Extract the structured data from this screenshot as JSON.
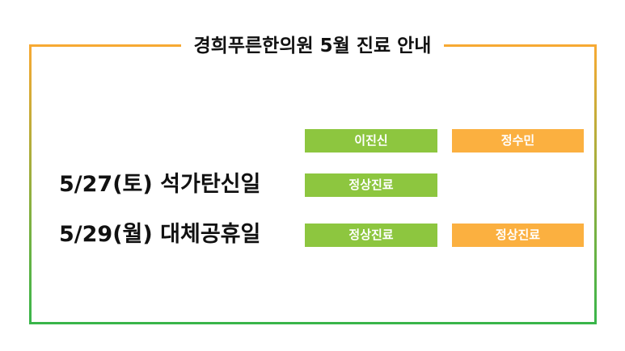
{
  "title": "경희푸른한의원 5월 진료 안내",
  "colors": {
    "green": "#8dc63f",
    "orange": "#fbb040",
    "border_top": "#f7a933",
    "border_bottom": "#39b54a"
  },
  "doctors": [
    "이진신",
    "정수민"
  ],
  "rows": [
    {
      "date": "5/27(토) 석가탄신일",
      "cells": [
        "정상진료",
        ""
      ]
    },
    {
      "date": "5/29(월) 대체공휴일",
      "cells": [
        "정상진료",
        "정상진료"
      ]
    }
  ]
}
